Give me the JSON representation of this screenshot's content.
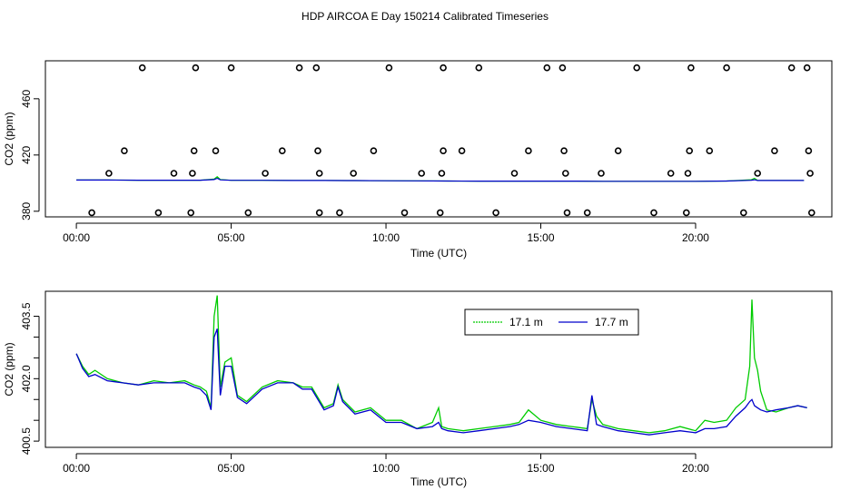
{
  "title": "HDP AIRCOA E  Day 150214  Calibrated Timeseries",
  "colors": {
    "series_17_1": "#00cc00",
    "series_17_7": "#0000cc",
    "points": "#000000"
  },
  "chart_data": [
    {
      "type": "scatter",
      "title": "",
      "xlabel": "Time (UTC)",
      "ylabel": "CO2 (ppm)",
      "xlim": [
        -1.0,
        24.4
      ],
      "ylim": [
        376,
        487
      ],
      "xticks": [
        0,
        5,
        10,
        15,
        20
      ],
      "xtick_labels": [
        "00:00",
        "05:00",
        "10:00",
        "15:00",
        "20:00"
      ],
      "yticks": [
        380,
        420,
        460
      ],
      "ytick_labels": [
        "380",
        "420",
        "460"
      ],
      "grid": false,
      "points": {
        "x": [
          2.13,
          3.85,
          5.0,
          7.2,
          7.75,
          10.1,
          11.85,
          13.0,
          15.2,
          15.7,
          18.1,
          19.85,
          21.0,
          23.1,
          23.6,
          1.55,
          3.8,
          4.5,
          6.65,
          7.8,
          9.6,
          11.85,
          12.45,
          14.6,
          15.75,
          17.5,
          19.8,
          20.45,
          22.55,
          23.65,
          1.05,
          3.15,
          3.75,
          6.1,
          7.85,
          8.95,
          11.15,
          11.8,
          14.15,
          15.8,
          16.95,
          19.2,
          19.75,
          22.0,
          23.7,
          0.5,
          2.65,
          3.7,
          5.55,
          7.85,
          8.5,
          10.6,
          11.75,
          13.55,
          15.85,
          16.5,
          18.65,
          19.7,
          21.55,
          23.75
        ],
        "y": [
          482,
          482,
          482,
          482,
          482,
          482,
          482,
          482,
          482,
          482,
          482,
          482,
          482,
          482,
          482,
          423,
          423,
          423,
          423,
          423,
          423,
          423,
          423,
          423,
          423,
          423,
          423,
          423,
          423,
          423,
          407,
          407,
          407,
          407,
          407,
          407,
          407,
          407,
          407,
          407,
          407,
          407,
          407,
          407,
          407,
          379,
          379,
          379,
          379,
          379,
          379,
          379,
          379,
          379,
          379,
          379,
          379,
          379,
          379,
          379
        ]
      },
      "series": [
        {
          "x": [
            0,
            1,
            2,
            3,
            4,
            4.45,
            4.55,
            4.65,
            5,
            6,
            7,
            8,
            9,
            10,
            11,
            12,
            13,
            14,
            15,
            16,
            17,
            18,
            19,
            20,
            21,
            21.8,
            21.9,
            22,
            23,
            23.5
          ],
          "values": [
            402.2,
            402.2,
            402.1,
            402.1,
            402.1,
            402.9,
            404.5,
            402.6,
            402.0,
            402.0,
            401.9,
            401.9,
            401.8,
            401.7,
            401.6,
            401.5,
            401.4,
            401.4,
            401.4,
            401.4,
            401.3,
            401.3,
            401.3,
            401.3,
            401.5,
            402.4,
            403.4,
            402.0,
            401.9,
            401.9
          ]
        },
        {
          "x": [
            0,
            1,
            2,
            3,
            4,
            4.45,
            4.55,
            4.65,
            5,
            6,
            7,
            8,
            9,
            10,
            11,
            12,
            13,
            14,
            15,
            16,
            17,
            18,
            19,
            20,
            21,
            21.8,
            21.9,
            22,
            23,
            23.5
          ],
          "values": [
            402.2,
            402.2,
            402.1,
            402.1,
            402.1,
            402.5,
            403.4,
            402.3,
            402.0,
            402.0,
            401.9,
            401.9,
            401.8,
            401.7,
            401.6,
            401.5,
            401.4,
            401.4,
            401.4,
            401.4,
            401.3,
            401.3,
            401.3,
            401.3,
            401.5,
            402.0,
            402.4,
            401.9,
            401.9,
            401.9
          ]
        }
      ]
    },
    {
      "type": "line",
      "title": "",
      "xlabel": "Time (UTC)",
      "ylabel": "CO2 (ppm)",
      "xlim": [
        -1.0,
        24.4
      ],
      "ylim": [
        400.35,
        404.1
      ],
      "xticks": [
        0,
        5,
        10,
        15,
        20
      ],
      "xtick_labels": [
        "00:00",
        "05:00",
        "10:00",
        "15:00",
        "20:00"
      ],
      "yticks": [
        400.5,
        401.0,
        401.5,
        402.0,
        402.5,
        403.0,
        403.5
      ],
      "ytick_labels": [
        "400.5",
        "",
        "",
        "402.0",
        "",
        "",
        "403.5"
      ],
      "grid": false,
      "legend": "top-right",
      "series": [
        {
          "name": "17.1 m",
          "x": [
            0,
            0.2,
            0.4,
            0.6,
            1.0,
            1.5,
            2.0,
            2.5,
            3.0,
            3.5,
            3.8,
            4.0,
            4.2,
            4.35,
            4.45,
            4.55,
            4.65,
            4.8,
            5.0,
            5.2,
            5.5,
            6.0,
            6.5,
            7.0,
            7.3,
            7.6,
            8.0,
            8.3,
            8.45,
            8.6,
            9.0,
            9.5,
            10.0,
            10.5,
            11.0,
            11.5,
            11.7,
            11.8,
            12.0,
            12.5,
            13.0,
            13.5,
            14.0,
            14.3,
            14.6,
            15.0,
            15.5,
            16.0,
            16.5,
            16.65,
            16.8,
            17.0,
            17.5,
            18.0,
            18.5,
            19.0,
            19.5,
            20.0,
            20.3,
            20.6,
            21.0,
            21.3,
            21.6,
            21.75,
            21.82,
            21.9,
            22.0,
            22.1,
            22.3,
            22.6,
            23.0,
            23.3,
            23.6
          ],
          "values": [
            402.6,
            402.3,
            402.1,
            402.2,
            402.0,
            401.9,
            401.85,
            401.95,
            401.9,
            401.95,
            401.85,
            401.8,
            401.7,
            401.3,
            403.5,
            404.0,
            401.8,
            402.4,
            402.5,
            401.6,
            401.45,
            401.8,
            401.95,
            401.9,
            401.8,
            401.8,
            401.3,
            401.4,
            401.85,
            401.5,
            401.2,
            401.3,
            401.0,
            401.0,
            400.8,
            400.95,
            401.3,
            400.85,
            400.8,
            400.75,
            400.8,
            400.85,
            400.9,
            400.95,
            401.25,
            401.0,
            400.9,
            400.85,
            400.8,
            401.5,
            401.1,
            400.9,
            400.8,
            400.75,
            400.7,
            400.75,
            400.85,
            400.75,
            401.0,
            400.95,
            401.0,
            401.3,
            401.5,
            402.3,
            403.9,
            402.5,
            402.2,
            401.7,
            401.25,
            401.2,
            401.3,
            401.35,
            401.3
          ]
        },
        {
          "name": "17.7 m",
          "x": [
            0,
            0.2,
            0.4,
            0.6,
            1.0,
            1.5,
            2.0,
            2.5,
            3.0,
            3.5,
            3.8,
            4.0,
            4.2,
            4.35,
            4.45,
            4.55,
            4.65,
            4.8,
            5.0,
            5.2,
            5.5,
            6.0,
            6.5,
            7.0,
            7.3,
            7.6,
            8.0,
            8.3,
            8.45,
            8.6,
            9.0,
            9.5,
            10.0,
            10.5,
            11.0,
            11.5,
            11.7,
            11.8,
            12.0,
            12.5,
            13.0,
            13.5,
            14.0,
            14.3,
            14.6,
            15.0,
            15.5,
            16.0,
            16.5,
            16.65,
            16.8,
            17.0,
            17.5,
            18.0,
            18.5,
            19.0,
            19.5,
            20.0,
            20.3,
            20.6,
            21.0,
            21.3,
            21.6,
            21.75,
            21.82,
            21.9,
            22.0,
            22.1,
            22.3,
            22.6,
            23.0,
            23.3,
            23.6
          ],
          "values": [
            402.6,
            402.25,
            402.05,
            402.1,
            401.95,
            401.9,
            401.85,
            401.9,
            401.9,
            401.9,
            401.8,
            401.75,
            401.6,
            401.25,
            403.0,
            403.2,
            401.6,
            402.3,
            402.3,
            401.55,
            401.4,
            401.75,
            401.9,
            401.9,
            401.75,
            401.75,
            401.25,
            401.35,
            401.8,
            401.45,
            401.15,
            401.25,
            400.95,
            400.95,
            400.8,
            400.85,
            400.95,
            400.8,
            400.75,
            400.7,
            400.75,
            400.8,
            400.85,
            400.9,
            401.0,
            400.95,
            400.85,
            400.8,
            400.75,
            401.6,
            400.9,
            400.85,
            400.75,
            400.7,
            400.65,
            400.7,
            400.75,
            400.7,
            400.8,
            400.8,
            400.85,
            401.1,
            401.3,
            401.45,
            401.5,
            401.35,
            401.3,
            401.25,
            401.2,
            401.25,
            401.3,
            401.35,
            401.3
          ]
        }
      ]
    }
  ]
}
